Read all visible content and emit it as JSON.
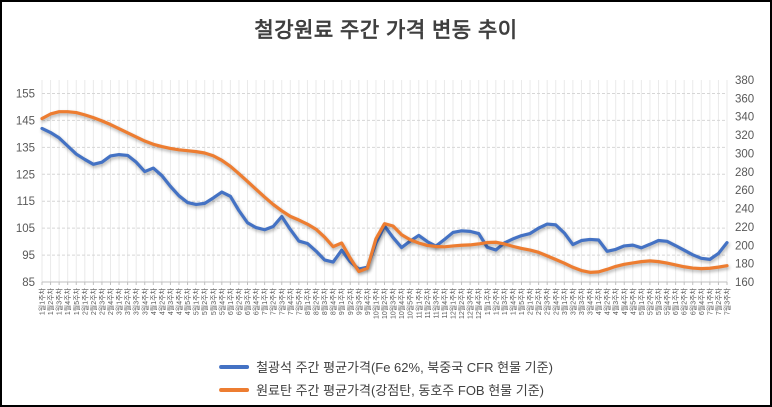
{
  "title": "철강원료 주간 가격 변동 추이",
  "legend": [
    {
      "label": "철광석 주간 평균가격(Fe 62%, 북중국 CFR 현물 기준)",
      "color": "#4472C4"
    },
    {
      "label": "원료탄 주간 평균가격(강점탄, 동호주 FOB 현물 기준)",
      "color": "#ED7D31"
    }
  ],
  "colors": {
    "iron_ore_line": "#4472C4",
    "coking_coal_line": "#ED7D31",
    "axis_text": "#595959",
    "h_gridline": "#D6D6D6",
    "v_gridline": "#EAEAEA",
    "axis_line": "#BFBFBF",
    "title_text": "#3f3f3f"
  },
  "chart_data": {
    "type": "line",
    "title": "철강원료 주간 가격 변동 추이",
    "grid": true,
    "legend_position": "bottom",
    "x_label_rotation": 90,
    "categories": [
      "1월1주차",
      "1월2주차",
      "1월3주차",
      "1월4주차",
      "1월5주차",
      "2월1주차",
      "2월2주차",
      "2월3주차",
      "2월4주차",
      "3월1주차",
      "3월2주차",
      "3월3주차",
      "3월4주차",
      "4월1주차",
      "4월2주차",
      "4월3주차",
      "4월4주차",
      "4월5주차",
      "5월1주차",
      "5월2주차",
      "5월3주차",
      "5월4주차",
      "6월1주차",
      "6월2주차",
      "6월3주차",
      "6월4주차",
      "7월1주차",
      "7월2주차",
      "7월3주차",
      "7월4주차",
      "7월5주차",
      "8월1주차",
      "8월2주차",
      "8월3주차",
      "8월4주차",
      "9월1주차",
      "9월2주차",
      "9월3주차",
      "9월4주차",
      "10월1주차",
      "10월2주차",
      "10월3주차",
      "10월4주차",
      "10월5주차",
      "11월1주차",
      "11월2주차",
      "11월3주차",
      "11월4주차",
      "12월1주차",
      "12월2주차",
      "12월3주차",
      "12월4주차",
      "1월1주차",
      "1월2주차",
      "1월3주차",
      "1월4주차",
      "1월5주차",
      "2월1주차",
      "2월2주차",
      "2월3주차",
      "2월4주차",
      "3월1주차",
      "3월2주차",
      "3월3주차",
      "3월4주차",
      "4월1주차",
      "4월2주차",
      "4월3주차",
      "4월4주차",
      "4월5주차",
      "5월1주차",
      "5월2주차",
      "5월3주차",
      "5월4주차",
      "6월1주차",
      "6월2주차",
      "6월3주차",
      "6월4주차",
      "7월1주차",
      "7월2주차",
      "7월3주차"
    ],
    "series": [
      {
        "name": "철광석 주간 평균가격(Fe 62%, 북중국 CFR 현물 기준)",
        "axis": "left",
        "color": "#4472C4",
        "values": [
          142,
          140.5,
          138.5,
          135.5,
          132.5,
          130.5,
          128.7,
          129.5,
          131.8,
          132.3,
          132,
          129.5,
          126,
          127.3,
          124.5,
          120.5,
          117,
          114.5,
          113.8,
          114.2,
          116.2,
          118.4,
          116.8,
          111.5,
          107,
          105.2,
          104.4,
          105.6,
          109.3,
          104.5,
          100.2,
          99.3,
          96.5,
          93.2,
          92.4,
          96.8,
          92.5,
          89.8,
          90.5,
          99.5,
          105.8,
          101.5,
          97.8,
          100.2,
          102.3,
          100,
          98.3,
          100.8,
          103.4,
          104,
          103.8,
          103,
          97.9,
          96.9,
          99.5,
          101,
          102.2,
          103,
          105,
          106.5,
          106.2,
          103.2,
          98.9,
          100.4,
          100.8,
          100.6,
          96.4,
          97.1,
          98.4,
          98.7,
          97.7,
          99,
          100.4,
          100.1,
          98.5,
          96.8,
          95.1,
          93.8,
          93.4,
          95.6,
          99.6
        ]
      },
      {
        "name": "원료탄 주간 평균가격(강점탄, 동호주 FOB 현물 기준)",
        "axis": "right",
        "color": "#ED7D31",
        "values": [
          338,
          343,
          345.5,
          345.5,
          344.5,
          342,
          339,
          335.5,
          331.5,
          327,
          322.5,
          318,
          313.5,
          310,
          307.5,
          305.5,
          304,
          303,
          302,
          300.5,
          297.5,
          292.5,
          286,
          278,
          269.5,
          261,
          252.5,
          244.5,
          237.5,
          231.5,
          227.5,
          223,
          217.5,
          209,
          198.5,
          202.5,
          186,
          171.5,
          175,
          207,
          223.5,
          221,
          211.5,
          206,
          202.5,
          199.8,
          198.7,
          198.3,
          199.3,
          200,
          200.4,
          201.5,
          203,
          203.3,
          201.5,
          198.8,
          196.6,
          194.8,
          192.3,
          188.5,
          184.5,
          180.5,
          176,
          172.5,
          170.5,
          171,
          173.8,
          177,
          179.3,
          180.8,
          182.2,
          183,
          182.2,
          180.6,
          178.6,
          176.6,
          175.2,
          174.6,
          175,
          176.2,
          177.8
        ]
      }
    ],
    "left_axis": {
      "min": 85,
      "max": 160,
      "step": 10,
      "ticks": [
        85,
        95,
        105,
        115,
        125,
        135,
        145,
        155
      ]
    },
    "right_axis": {
      "min": 160,
      "max": 380,
      "step": 20,
      "ticks": [
        160,
        180,
        200,
        220,
        240,
        260,
        280,
        300,
        320,
        340,
        360,
        380
      ]
    }
  }
}
